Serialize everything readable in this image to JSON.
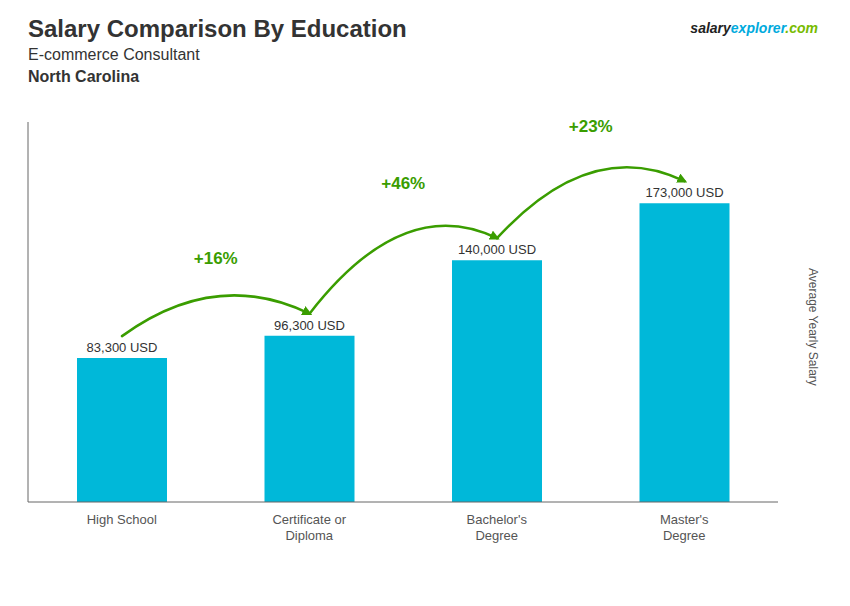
{
  "chart_data": {
    "type": "bar",
    "title": "Salary Comparison By Education",
    "subtitle": [
      "E-commerce Consultant",
      "North Carolina"
    ],
    "categories": [
      "High School",
      "Certificate or\nDiploma",
      "Bachelor's\nDegree",
      "Master's\nDegree"
    ],
    "values": [
      83300,
      96300,
      140000,
      173000
    ],
    "value_labels": [
      "83,300 USD",
      "96,300 USD",
      "140,000 USD",
      "173,000 USD"
    ],
    "data_labels": true,
    "color": "#00b8d9",
    "y_label": "Average Yearly Salary",
    "ylim": [
      0,
      220000
    ],
    "tick_labels": "x",
    "grid": false,
    "annotations": [
      {
        "text": "+16%",
        "from": "High School",
        "to": "Certificate or\nDiploma",
        "color": "#3a9d00"
      },
      {
        "text": "+46%",
        "from": "Certificate or\nDiploma",
        "to": "Bachelor's\nDegree",
        "color": "#3a9d00"
      },
      {
        "text": "+23%",
        "from": "Bachelor's\nDegree",
        "to": "Master's\nDegree",
        "color": "#3a9d00"
      },
      {
        "text": "salary",
        "color": "#222222"
      },
      {
        "text": "explorer",
        "color": "#00aadd"
      },
      {
        "text": ".com",
        "color": "#77bb00"
      }
    ]
  }
}
